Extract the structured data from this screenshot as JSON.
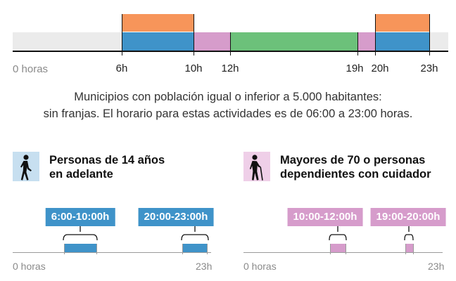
{
  "colors": {
    "orange": "#f7955a",
    "blue": "#3f93c9",
    "pink": "#d69ccb",
    "green": "#6cc17a",
    "light_grey": "#ebebeb",
    "icon_blue_bg": "#c7dff0",
    "icon_pink_bg": "#efcfe8"
  },
  "top_axis": {
    "start_label": "0 horas",
    "tick_labels": [
      "6h",
      "10h",
      "12h",
      "19h",
      "20h",
      "23h"
    ]
  },
  "caption": {
    "line1": "Municipios con población igual o inferior a 5.000 habitantes:",
    "line2": "sin franjas. El horario para estas actividades es de 06:00 a 23:00 horas."
  },
  "groups": [
    {
      "icon": "walking-person-icon",
      "title_line1": "Personas de 14 años",
      "title_line2": "en adelante",
      "ranges": [
        "6:00-10:00h",
        "20:00-23:00h"
      ],
      "axis_start": "0 horas",
      "axis_end": "23h"
    },
    {
      "icon": "elderly-person-cane-icon",
      "title_line1": "Mayores de 70 o personas",
      "title_line2": "dependientes con cuidador",
      "ranges": [
        "10:00-12:00h",
        "19:00-20:00h"
      ],
      "axis_start": "0 horas",
      "axis_end": "23h"
    }
  ]
}
